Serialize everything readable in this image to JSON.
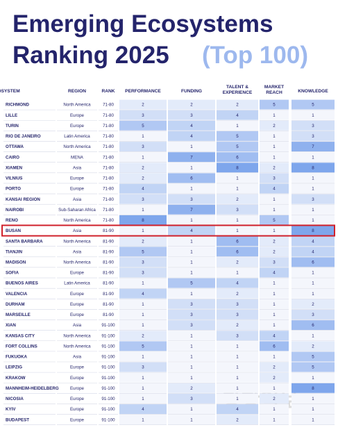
{
  "header": {
    "title_main": "Emerging Ecosystems Ranking 2025",
    "title_accent": "(Top 100)"
  },
  "table": {
    "columns": [
      "ECOSYSTEM",
      "REGION",
      "RANK",
      "PERFORMANCE",
      "FUNDING",
      "TALENT & EXPERIENCE",
      "MARKET REACH",
      "KNOWLEDGE"
    ],
    "rows": [
      [
        "RICHMOND",
        "North America",
        "71-80",
        2,
        2,
        2,
        5,
        5
      ],
      [
        "LILLE",
        "Europe",
        "71-80",
        3,
        3,
        4,
        1,
        1
      ],
      [
        "TURIN",
        "Europe",
        "71-80",
        5,
        4,
        1,
        2,
        3
      ],
      [
        "RIO DE JANEIRO",
        "Latin America",
        "71-80",
        1,
        4,
        5,
        1,
        3
      ],
      [
        "OTTAWA",
        "North America",
        "71-80",
        3,
        1,
        5,
        1,
        7
      ],
      [
        "CAIRO",
        "MENA",
        "71-80",
        1,
        7,
        6,
        1,
        1
      ],
      [
        "XIAMEN",
        "Asia",
        "71-80",
        2,
        1,
        8,
        2,
        8
      ],
      [
        "VILNIUS",
        "Europe",
        "71-80",
        2,
        6,
        1,
        3,
        1
      ],
      [
        "PORTO",
        "Europe",
        "71-80",
        4,
        1,
        1,
        4,
        1
      ],
      [
        "KANSAI REGION",
        "Asia",
        "71-80",
        3,
        3,
        2,
        1,
        3
      ],
      [
        "NAIROBI",
        "Sub-Saharan Africa",
        "71-80",
        1,
        7,
        3,
        1,
        1
      ],
      [
        "RENO",
        "North America",
        "71-80",
        8,
        1,
        1,
        5,
        1
      ],
      [
        "BUSAN",
        "Asia",
        "81-90",
        1,
        4,
        1,
        1,
        8
      ],
      [
        "SANTA BARBARA",
        "North America",
        "81-90",
        2,
        1,
        6,
        2,
        4
      ],
      [
        "TIANJIN",
        "Asia",
        "81-90",
        5,
        1,
        6,
        2,
        4
      ],
      [
        "MADISON",
        "North America",
        "81-90",
        3,
        1,
        2,
        3,
        6
      ],
      [
        "SOFIA",
        "Europe",
        "81-90",
        3,
        1,
        1,
        4,
        1
      ],
      [
        "BUENOS AIRES",
        "Latin America",
        "81-90",
        1,
        5,
        4,
        1,
        1
      ],
      [
        "VALENCIA",
        "Europe",
        "81-90",
        4,
        1,
        2,
        1,
        1
      ],
      [
        "DURHAM",
        "Europe",
        "81-90",
        1,
        3,
        3,
        1,
        2
      ],
      [
        "MARSEILLE",
        "Europe",
        "81-90",
        1,
        3,
        3,
        1,
        3
      ],
      [
        "XIAN",
        "Asia",
        "91-100",
        1,
        3,
        2,
        1,
        6
      ],
      [
        "KANSAS CITY",
        "North America",
        "91-100",
        2,
        1,
        3,
        4,
        1
      ],
      [
        "FORT COLLINS",
        "North America",
        "91-100",
        5,
        1,
        1,
        6,
        2
      ],
      [
        "FUKUOKA",
        "Asia",
        "91-100",
        1,
        1,
        1,
        1,
        5
      ],
      [
        "LEIPZIG",
        "Europe",
        "91-100",
        3,
        1,
        1,
        2,
        5
      ],
      [
        "KRAKOW",
        "Europe",
        "91-100",
        1,
        1,
        1,
        2,
        1
      ],
      [
        "MANNHEIM-HEIDELBERG",
        "Europe",
        "91-100",
        1,
        2,
        1,
        1,
        8
      ],
      [
        "NICOSIA",
        "Europe",
        "91-100",
        1,
        3,
        1,
        2,
        1
      ],
      [
        "KYIV",
        "Europe",
        "91-100",
        4,
        1,
        4,
        1,
        1
      ],
      [
        "BUDAPEST",
        "Europe",
        "91-100",
        1,
        1,
        2,
        1,
        1
      ]
    ]
  },
  "watermark": "광장일보"
}
